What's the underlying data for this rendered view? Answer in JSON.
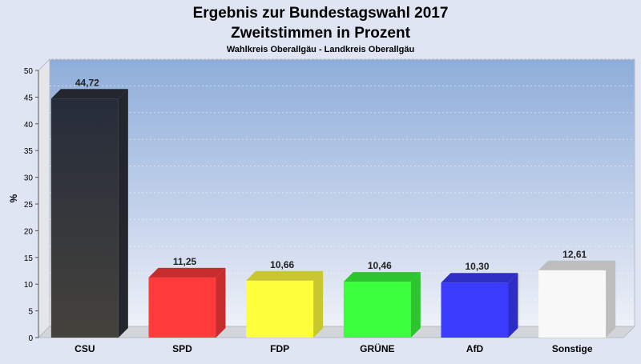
{
  "chart_data": {
    "type": "bar",
    "title": "Ergebnis zur Bundestagswahl 2017",
    "title_line2": "Zweitstimmen in Prozent",
    "subtitle": "Wahlkreis Oberallgäu - Landkreis Oberallgäu",
    "ylabel": "%",
    "xlabel": "",
    "ylim": [
      0,
      50
    ],
    "yticks": [
      0,
      5,
      10,
      15,
      20,
      25,
      30,
      35,
      40,
      45,
      50
    ],
    "grid": true,
    "legend": "none",
    "categories": [
      "CSU",
      "SPD",
      "FDP",
      "GRÜNE",
      "AfD",
      "Sonstige"
    ],
    "values": [
      44.72,
      11.25,
      10.66,
      10.46,
      10.3,
      12.61
    ],
    "value_labels": [
      "44,72",
      "11,25",
      "10,66",
      "10,46",
      "10,30",
      "12,61"
    ],
    "colors": [
      "#2a2f3b",
      "#ff3b3b",
      "#ffff3b",
      "#3bff3b",
      "#3b3bff",
      "#f8f8f8"
    ],
    "colors_dark": [
      "#23262d",
      "#c62c2c",
      "#c8c82e",
      "#2ec42e",
      "#2e2ec4",
      "#bdbdbd"
    ]
  }
}
